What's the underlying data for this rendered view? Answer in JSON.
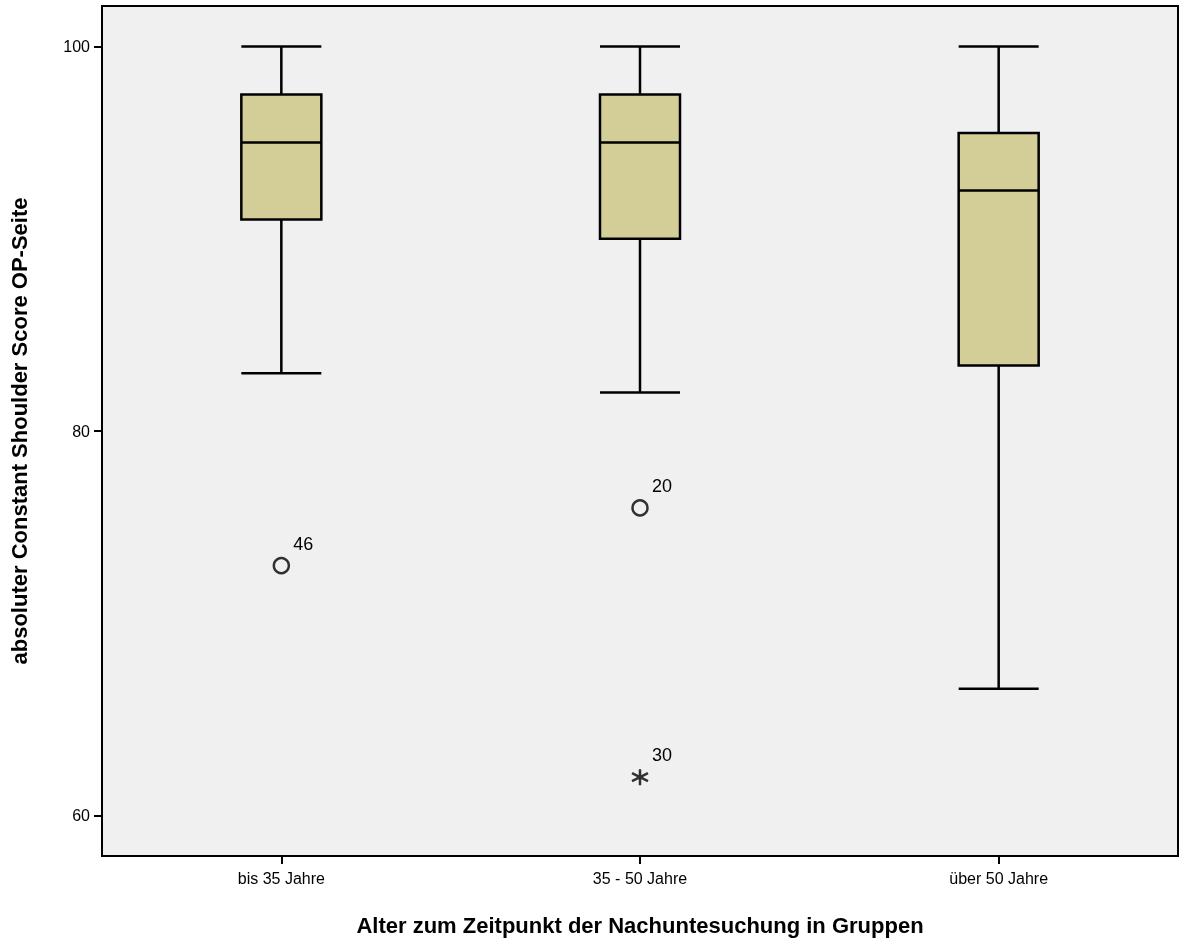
{
  "chart_data": {
    "type": "box",
    "xlabel": "Alter zum Zeitpunkt der Nachuntesuchung in Gruppen",
    "ylabel": "absoluter Constant Shoulder Score OP-Seite",
    "categories": [
      "bis 35 Jahre",
      "35 - 50 Jahre",
      "über 50 Jahre"
    ],
    "series": [
      {
        "color": "#d3ce98",
        "boxes": [
          {
            "low": 83,
            "q1": 91,
            "median": 95,
            "q3": 97.5,
            "high": 100
          },
          {
            "low": 82,
            "q1": 90,
            "median": 95,
            "q3": 97.5,
            "high": 100
          },
          {
            "low": 66.6,
            "q1": 83.4,
            "median": 92.5,
            "q3": 95.5,
            "high": 100
          }
        ]
      },
      {
        "type": "scatter",
        "x": [
          "bis 35 Jahre",
          "35 - 50 Jahre"
        ],
        "values": [
          73,
          76
        ],
        "marker": "circle",
        "color": "#000000"
      },
      {
        "type": "scatter",
        "x": [
          "35 - 50 Jahre"
        ],
        "values": [
          62
        ],
        "marker": "cross",
        "color": "#000000"
      }
    ],
    "ylim": [
      57.9,
      102.1
    ],
    "yticks": [
      60,
      80,
      100
    ],
    "grid": false,
    "annotations": [
      {
        "text": "46",
        "x": "bis 35 Jahre",
        "y": 73
      },
      {
        "text": "20",
        "x": "35 - 50 Jahre",
        "y": 76
      },
      {
        "text": "30",
        "x": "35 - 50 Jahre",
        "y": 62
      }
    ]
  }
}
